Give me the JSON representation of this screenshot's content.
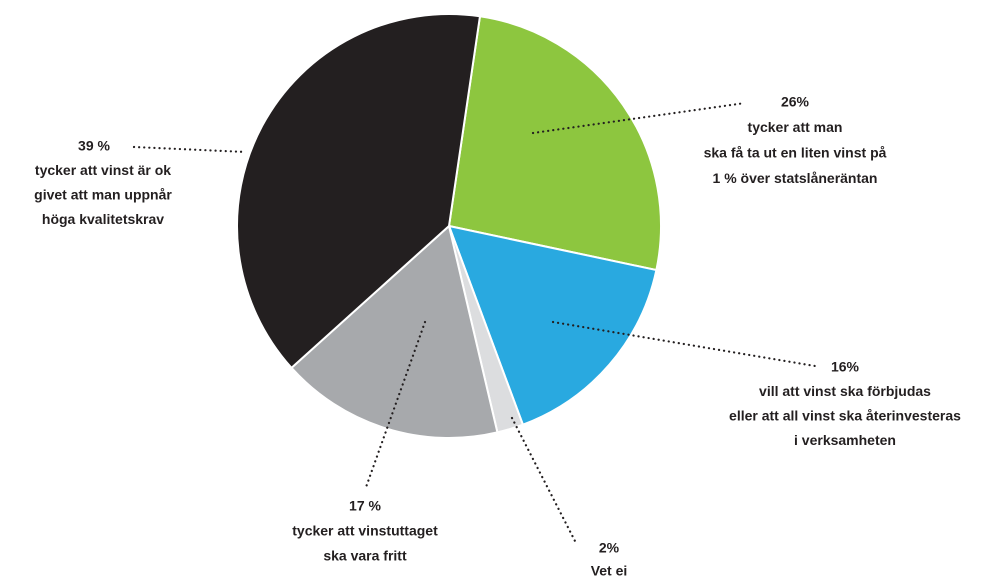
{
  "chart_data": {
    "type": "pie",
    "categories": [
      [
        "tycker att man",
        "ska få ta ut en liten vinst på",
        "1 % över statslåneräntan"
      ],
      [
        "vill att vinst ska förbjudas",
        "eller att all vinst ska återinvesteras",
        "i verksamheten"
      ],
      [
        "Vet ei"
      ],
      [
        "tycker att vinstuttaget",
        "ska vara fritt"
      ],
      [
        "tycker att vinst är ok",
        "givet att man uppnår",
        "höga kvalitetskrav"
      ]
    ],
    "values": [
      26,
      16,
      2,
      17,
      39
    ],
    "value_labels": [
      "26%",
      "16%",
      "2%",
      "17 %",
      "39 %"
    ],
    "colors": [
      "#8dc63f",
      "#29a9e0",
      "#dcdddf",
      "#a7a9ac",
      "#231f20"
    ]
  }
}
